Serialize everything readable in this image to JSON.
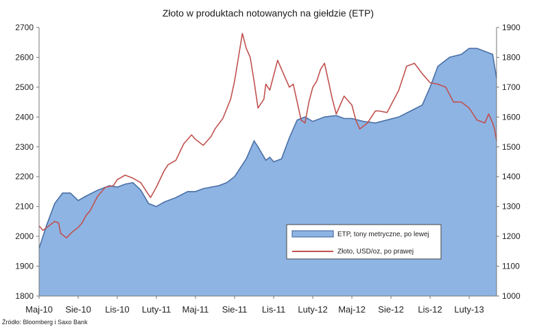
{
  "chart_data": {
    "type": "area",
    "title": "Złoto w produktach notowanych na giełdzie (ETP)",
    "source": "Źródło: Bloomberg i Saxo Bank",
    "x_labels": [
      "Maj-10",
      "Sie-10",
      "Lis-10",
      "Luty-11",
      "Maj-11",
      "Sie-11",
      "Lis-11",
      "Luty-12",
      "Maj-12",
      "Sie-12",
      "Lis-12",
      "Luty-13"
    ],
    "y_left": {
      "min": 1800,
      "max": 2700,
      "ticks": [
        1800,
        1900,
        2000,
        2100,
        2200,
        2300,
        2400,
        2500,
        2600,
        2700
      ]
    },
    "y_right": {
      "min": 1000,
      "max": 1900,
      "ticks": [
        1000,
        1100,
        1200,
        1300,
        1400,
        1500,
        1600,
        1700,
        1800,
        1900
      ]
    },
    "legend": {
      "placement": "lower-right"
    },
    "series": [
      {
        "name": "ETP, tony metryczne, po lewej",
        "kind": "area",
        "axis": "left",
        "color": "#8EB4E3",
        "edge_color": "#4A6FA5",
        "x": [
          0.0,
          0.2,
          0.4,
          0.6,
          0.8,
          1.0,
          1.2,
          1.5,
          1.8,
          2.0,
          2.2,
          2.4,
          2.6,
          2.8,
          3.0,
          3.2,
          3.5,
          3.8,
          4.0,
          4.2,
          4.4,
          4.6,
          4.8,
          5.0,
          5.3,
          5.5,
          5.6,
          5.8,
          5.9,
          6.0,
          6.2,
          6.4,
          6.6,
          6.8,
          7.0,
          7.3,
          7.6,
          7.8,
          8.0,
          8.3,
          8.6,
          8.9,
          9.2,
          9.5,
          9.8,
          10.0,
          10.2,
          10.5,
          10.8,
          11.0,
          11.2,
          11.4,
          11.6,
          11.7
        ],
        "values": [
          1960,
          2040,
          2110,
          2145,
          2145,
          2120,
          2135,
          2155,
          2170,
          2165,
          2175,
          2180,
          2155,
          2110,
          2100,
          2115,
          2130,
          2150,
          2150,
          2160,
          2165,
          2170,
          2180,
          2200,
          2260,
          2320,
          2300,
          2255,
          2265,
          2250,
          2260,
          2330,
          2390,
          2400,
          2385,
          2400,
          2405,
          2395,
          2395,
          2385,
          2380,
          2390,
          2400,
          2420,
          2440,
          2500,
          2570,
          2600,
          2610,
          2630,
          2630,
          2620,
          2610,
          2530
        ]
      },
      {
        "name": "Złoto, USD/oz, po prawej",
        "kind": "line",
        "axis": "right",
        "color": "#C0504D",
        "x": [
          0.0,
          0.1,
          0.25,
          0.4,
          0.5,
          0.55,
          0.7,
          0.85,
          1.0,
          1.1,
          1.2,
          1.3,
          1.5,
          1.7,
          1.9,
          2.0,
          2.2,
          2.4,
          2.6,
          2.8,
          2.85,
          3.0,
          3.2,
          3.3,
          3.5,
          3.7,
          3.9,
          4.0,
          4.2,
          4.4,
          4.5,
          4.7,
          4.9,
          5.0,
          5.1,
          5.2,
          5.3,
          5.4,
          5.5,
          5.6,
          5.75,
          5.8,
          5.9,
          6.0,
          6.1,
          6.2,
          6.3,
          6.4,
          6.5,
          6.6,
          6.7,
          6.8,
          6.9,
          7.0,
          7.1,
          7.2,
          7.3,
          7.5,
          7.6,
          7.7,
          7.8,
          8.0,
          8.1,
          8.2,
          8.4,
          8.6,
          8.7,
          8.9,
          9.0,
          9.2,
          9.4,
          9.6,
          9.8,
          10.0,
          10.2,
          10.4,
          10.6,
          10.8,
          11.0,
          11.2,
          11.4,
          11.5,
          11.6,
          11.65,
          11.7
        ],
        "values": [
          1235,
          1220,
          1235,
          1250,
          1245,
          1210,
          1195,
          1215,
          1230,
          1245,
          1270,
          1285,
          1335,
          1365,
          1370,
          1390,
          1405,
          1395,
          1380,
          1340,
          1330,
          1365,
          1420,
          1440,
          1455,
          1510,
          1540,
          1525,
          1505,
          1535,
          1560,
          1595,
          1660,
          1720,
          1800,
          1880,
          1830,
          1800,
          1720,
          1630,
          1660,
          1710,
          1690,
          1740,
          1790,
          1760,
          1730,
          1700,
          1710,
          1650,
          1590,
          1580,
          1650,
          1700,
          1720,
          1760,
          1780,
          1660,
          1610,
          1640,
          1670,
          1640,
          1590,
          1560,
          1580,
          1620,
          1620,
          1615,
          1640,
          1690,
          1770,
          1780,
          1745,
          1715,
          1710,
          1700,
          1650,
          1650,
          1630,
          1590,
          1580,
          1610,
          1580,
          1560,
          1520
        ]
      }
    ]
  }
}
